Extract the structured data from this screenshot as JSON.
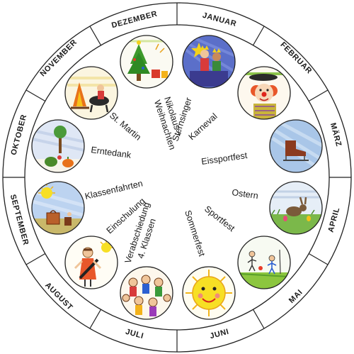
{
  "months": [
    "DEZEMBER",
    "JANUAR",
    "FEBRUAR",
    "MÄRZ",
    "APRIL",
    "MAI",
    "JUNI",
    "JULI",
    "AUGUST",
    "SEPTEMBER",
    "OKTOBER",
    "NOVEMBER"
  ],
  "events": {
    "nikolaus": [
      "Nikolaus +",
      "Weihnachten"
    ],
    "sternsinger": "Sternsinger",
    "karneval": "Karneval",
    "eissportfest": "Eissportfest",
    "ostern": "Ostern",
    "sportfest": "Sportfest",
    "sommerfest": "Sommerfest",
    "verabschiedung": [
      "Verabschiedung",
      "4. Klassen"
    ],
    "einschulung": "Einschulung",
    "klassenfahrten": "Klassenfahrten",
    "erntedank": "Erntedank",
    "st_martin": "St. Martin"
  },
  "pictures": [
    "christmas-tree-drawing",
    "star-singers-drawing",
    "clown-drawing",
    "ice-skate-drawing",
    "easter-bunny-drawing",
    "sports-day-drawing",
    "sun-face-drawing",
    "farewell-kids-drawing",
    "school-start-drawing",
    "class-trip-drawing",
    "harvest-drawing",
    "st-martin-drawing"
  ]
}
